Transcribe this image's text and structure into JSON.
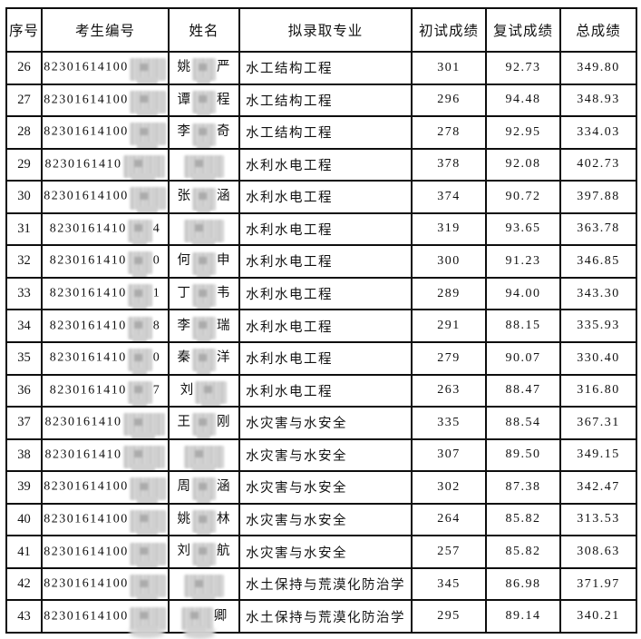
{
  "table": {
    "columns": [
      {
        "key": "no",
        "label": "序号"
      },
      {
        "key": "candidate-id",
        "label": "考生编号"
      },
      {
        "key": "name",
        "label": "姓名"
      },
      {
        "key": "major",
        "label": "拟录取专业"
      },
      {
        "key": "initial-score",
        "label": "初试成绩"
      },
      {
        "key": "retest-score",
        "label": "复试成绩"
      },
      {
        "key": "total-score",
        "label": "总成绩"
      }
    ],
    "rows": [
      {
        "no": "26",
        "id_prefix": "82301614100",
        "id_suffix": "",
        "name_pre": "姚",
        "name_post": "严",
        "major": "水工结构工程",
        "initial": "301",
        "retest": "92.73",
        "total": "349.80"
      },
      {
        "no": "27",
        "id_prefix": "82301614100",
        "id_suffix": "",
        "name_pre": "谭",
        "name_post": "程",
        "major": "水工结构工程",
        "initial": "296",
        "retest": "94.48",
        "total": "348.93"
      },
      {
        "no": "28",
        "id_prefix": "82301614100",
        "id_suffix": "",
        "name_pre": "李",
        "name_post": "奇",
        "major": "水工结构工程",
        "initial": "278",
        "retest": "92.95",
        "total": "334.03"
      },
      {
        "no": "29",
        "id_prefix": "8230161410",
        "id_suffix": "",
        "name_pre": "",
        "name_post": "",
        "major": "水利水电工程",
        "initial": "378",
        "retest": "92.08",
        "total": "402.73"
      },
      {
        "no": "30",
        "id_prefix": "82301614100",
        "id_suffix": "",
        "name_pre": "张",
        "name_post": "涵",
        "major": "水利水电工程",
        "initial": "374",
        "retest": "90.72",
        "total": "397.88"
      },
      {
        "no": "31",
        "id_prefix": "8230161410",
        "id_suffix": "4",
        "name_pre": "",
        "name_post": "",
        "major": "水利水电工程",
        "initial": "319",
        "retest": "93.65",
        "total": "363.78"
      },
      {
        "no": "32",
        "id_prefix": "8230161410",
        "id_suffix": "0",
        "name_pre": "何",
        "name_post": "申",
        "major": "水利水电工程",
        "initial": "300",
        "retest": "91.23",
        "total": "346.85"
      },
      {
        "no": "33",
        "id_prefix": "8230161410",
        "id_suffix": "1",
        "name_pre": "丁",
        "name_post": "韦",
        "major": "水利水电工程",
        "initial": "289",
        "retest": "94.00",
        "total": "343.30"
      },
      {
        "no": "34",
        "id_prefix": "8230161410",
        "id_suffix": "8",
        "name_pre": "李",
        "name_post": "瑞",
        "major": "水利水电工程",
        "initial": "291",
        "retest": "88.15",
        "total": "335.93"
      },
      {
        "no": "35",
        "id_prefix": "8230161410",
        "id_suffix": "0",
        "name_pre": "秦",
        "name_post": "洋",
        "major": "水利水电工程",
        "initial": "279",
        "retest": "90.07",
        "total": "330.40"
      },
      {
        "no": "36",
        "id_prefix": "8230161410",
        "id_suffix": "7",
        "name_pre": "刘",
        "name_post": "",
        "major": "水利水电工程",
        "initial": "263",
        "retest": "88.47",
        "total": "316.80"
      },
      {
        "no": "37",
        "id_prefix": "8230161410",
        "id_suffix": "",
        "name_pre": "王",
        "name_post": "刚",
        "major": "水灾害与水安全",
        "initial": "335",
        "retest": "88.54",
        "total": "367.31"
      },
      {
        "no": "38",
        "id_prefix": "8230161410",
        "id_suffix": "",
        "name_pre": "",
        "name_post": "",
        "major": "水灾害与水安全",
        "initial": "307",
        "retest": "89.50",
        "total": "349.15"
      },
      {
        "no": "39",
        "id_prefix": "82301614100",
        "id_suffix": "",
        "name_pre": "周",
        "name_post": "涵",
        "major": "水灾害与水安全",
        "initial": "302",
        "retest": "87.38",
        "total": "342.47"
      },
      {
        "no": "40",
        "id_prefix": "82301614100",
        "id_suffix": "",
        "name_pre": "姚",
        "name_post": "林",
        "major": "水灾害与水安全",
        "initial": "264",
        "retest": "85.82",
        "total": "313.53"
      },
      {
        "no": "41",
        "id_prefix": "82301614100",
        "id_suffix": "",
        "name_pre": "刘",
        "name_post": "航",
        "major": "水灾害与水安全",
        "initial": "257",
        "retest": "85.82",
        "total": "308.63"
      },
      {
        "no": "42",
        "id_prefix": "82301614100",
        "id_suffix": "",
        "name_pre": "",
        "name_post": "",
        "major": "水土保持与荒漠化防治学",
        "initial": "345",
        "retest": "86.98",
        "total": "371.97"
      },
      {
        "no": "43",
        "id_prefix": "82301614100",
        "id_suffix": "",
        "name_pre": "",
        "name_post": "卿",
        "major": "水土保持与荒漠化防治学",
        "initial": "295",
        "retest": "89.14",
        "total": "340.21"
      }
    ],
    "colors": {
      "border": "#0e0e0e",
      "background": "#ffffff",
      "redaction": "#cccccc"
    }
  }
}
